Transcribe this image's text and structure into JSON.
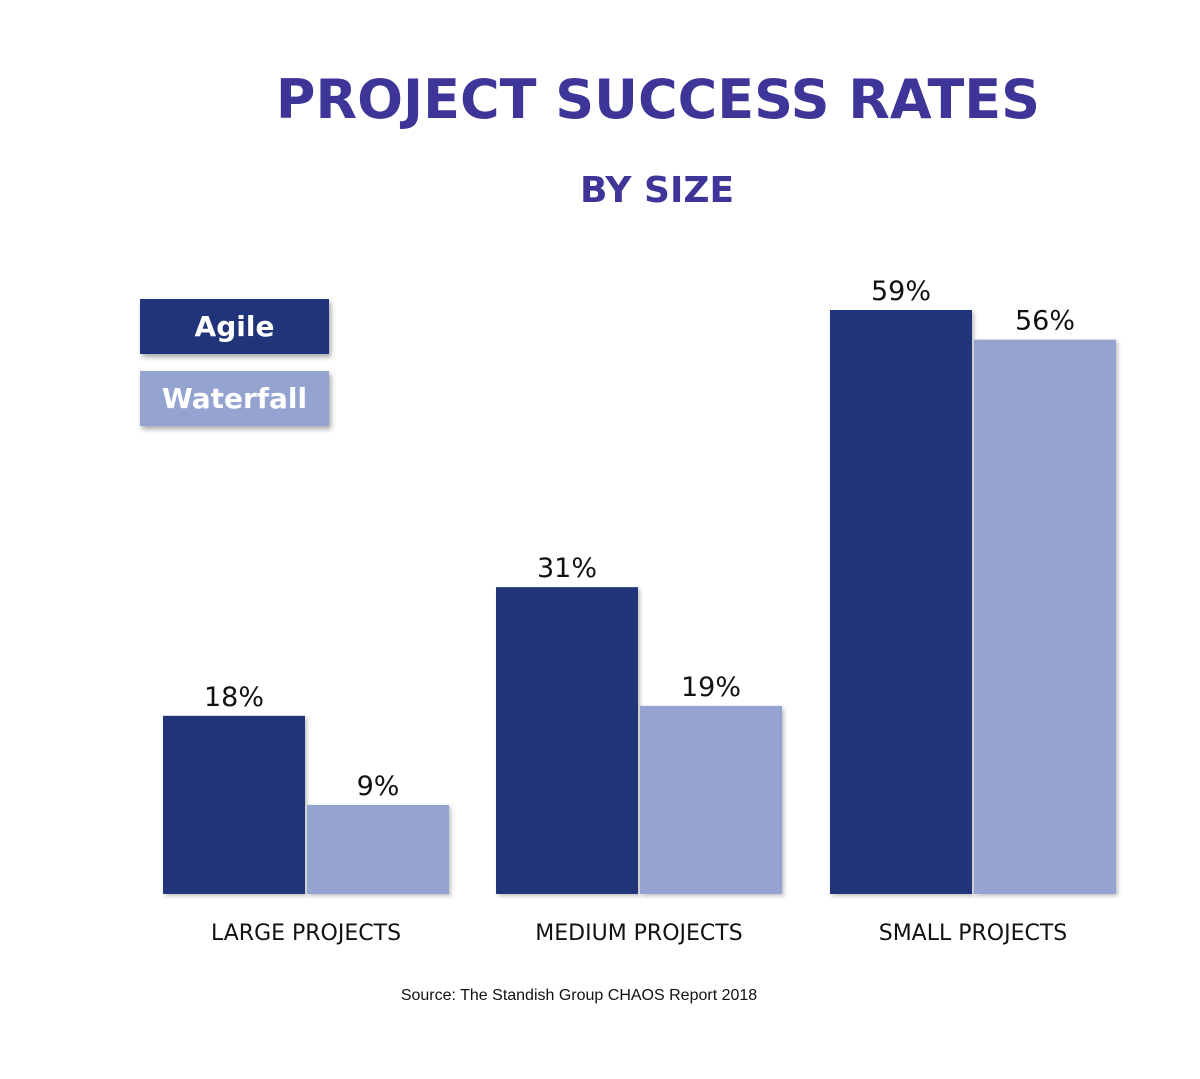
{
  "chart_data": {
    "type": "bar",
    "title": "PROJECT SUCCESS RATES",
    "subtitle": "BY SIZE",
    "categories": [
      "LARGE PROJECTS",
      "MEDIUM PROJECTS",
      "SMALL PROJECTS"
    ],
    "series": [
      {
        "name": "Agile",
        "values": [
          18,
          31,
          59
        ],
        "labels": [
          "18%",
          "31%",
          "59%"
        ],
        "color": "#21347a"
      },
      {
        "name": "Waterfall",
        "values": [
          9,
          19,
          56
        ],
        "labels": [
          "9%",
          "19%",
          "56%"
        ],
        "color": "#94a3d0"
      }
    ],
    "unit": "%",
    "ylim": [
      0,
      59
    ],
    "grid": false,
    "legend_position": "top-left",
    "source": "Source: The Standish Group CHAOS Report 2018"
  }
}
